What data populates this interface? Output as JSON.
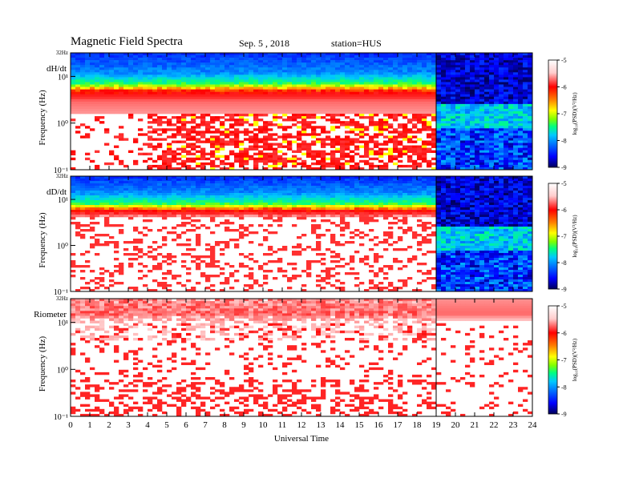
{
  "header": {
    "title": "Magnetic  Field  Spectra",
    "date": "Sep. 5  , 2018",
    "station": "station=HUS"
  },
  "colors": {
    "colormap": [
      "#00006a",
      "#0000ff",
      "#00b4ff",
      "#00ff80",
      "#80ff00",
      "#ffff00",
      "#ff8000",
      "#ff0000",
      "#ffe0e0",
      "#ffffff"
    ]
  },
  "chart_data": [
    {
      "type": "heatmap",
      "panel_label": "dH/dt",
      "ylabel": "Frequency  (Hz)",
      "xlabel": "",
      "y_scale": "log",
      "y_top_label": "32Hz",
      "y_tick_labels": [
        "10¹",
        "10⁰",
        "10⁻¹"
      ],
      "y_tick_values": [
        10,
        1,
        0.1
      ],
      "ylim": [
        0.1,
        32
      ],
      "xlim": [
        0,
        24
      ],
      "data_gap_after_hour": 19,
      "band_profile_hz": [
        {
          "freq": 32,
          "level": -8.3
        },
        {
          "freq": 12,
          "level": -7.8
        },
        {
          "freq": 7,
          "level": -7.0
        },
        {
          "freq": 5,
          "level": -6.0
        },
        {
          "freq": 3,
          "level": -5.3
        },
        {
          "freq": 1,
          "level": -5.1
        },
        {
          "freq": 0.1,
          "level": -5.0
        }
      ],
      "colorbar": {
        "label": "log₁₀(PSD)(V²/Hz)",
        "ticks": [
          "-5",
          "-6",
          "-7",
          "-8",
          "-9"
        ],
        "range": [
          -9,
          -5
        ]
      }
    },
    {
      "type": "heatmap",
      "panel_label": "dD/dt",
      "ylabel": "Frequency  (Hz)",
      "xlabel": "",
      "y_scale": "log",
      "y_top_label": "32Hz",
      "y_tick_labels": [
        "10¹",
        "10⁰",
        "10⁻¹"
      ],
      "y_tick_values": [
        10,
        1,
        0.1
      ],
      "ylim": [
        0.1,
        32
      ],
      "xlim": [
        0,
        24
      ],
      "data_gap_after_hour": 19,
      "band_profile_hz": [
        {
          "freq": 32,
          "level": -8.3
        },
        {
          "freq": 14,
          "level": -7.8
        },
        {
          "freq": 8,
          "level": -7.0
        },
        {
          "freq": 6,
          "level": -6.0
        },
        {
          "freq": 4.5,
          "level": -5.3
        },
        {
          "freq": 1,
          "level": -5.0
        },
        {
          "freq": 0.1,
          "level": -5.0
        }
      ],
      "colorbar": {
        "label": "log₁₀(PSD)(V²/Hz)",
        "ticks": [
          "-5",
          "-6",
          "-7",
          "-8",
          "-9"
        ],
        "range": [
          -9,
          -5
        ]
      }
    },
    {
      "type": "heatmap",
      "panel_label": "Riometer",
      "ylabel": "Frequency  (Hz)",
      "xlabel": "Universal Time",
      "y_scale": "log",
      "y_top_label": "32Hz",
      "y_tick_labels": [
        "10¹",
        "10⁰",
        "10⁻¹"
      ],
      "y_tick_values": [
        10,
        1,
        0.1
      ],
      "ylim": [
        0.1,
        32
      ],
      "xlim": [
        0,
        24
      ],
      "x_tick_labels": [
        "0",
        "1",
        "2",
        "3",
        "4",
        "5",
        "6",
        "7",
        "8",
        "9",
        "10",
        "11",
        "12",
        "13",
        "14",
        "15",
        "16",
        "17",
        "18",
        "19",
        "20",
        "21",
        "22",
        "23",
        "24"
      ],
      "data_gap_after_hour": 19,
      "band_profile_hz": [
        {
          "freq": 32,
          "level": -5.2
        },
        {
          "freq": 15,
          "level": -5.3
        },
        {
          "freq": 10,
          "level": -5.0
        }
      ],
      "colorbar": {
        "label": "log₁₀(PSD)(V²/Hz)",
        "ticks": [
          "-5",
          "-6",
          "-7",
          "-8",
          "-9"
        ],
        "range": [
          -9,
          -5
        ]
      }
    }
  ]
}
